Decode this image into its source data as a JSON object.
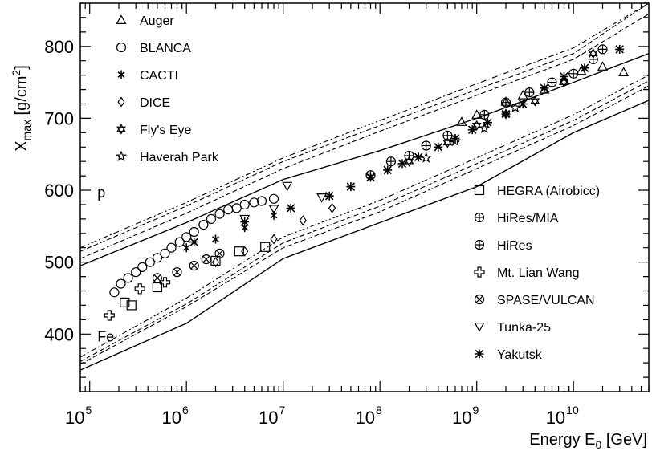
{
  "chart_data": {
    "type": "scatter",
    "title": "",
    "xlabel": "Energy E",
    "xlabel_sub": "0",
    "xlabel_unit": " [GeV]",
    "ylabel": "X",
    "ylabel_sub": "max",
    "ylabel_unit_pre": " [g/cm",
    "ylabel_unit_sup": "2",
    "ylabel_unit_post": "]",
    "x_scale": "log",
    "xlim": [
      80000,
      60000000000
    ],
    "ylim": [
      320,
      860
    ],
    "x_ticks": [
      {
        "base": "10",
        "exp": "5",
        "value": 100000
      },
      {
        "base": "10",
        "exp": "6",
        "value": 1000000
      },
      {
        "base": "10",
        "exp": "7",
        "value": 10000000
      },
      {
        "base": "10",
        "exp": "8",
        "value": 100000000
      },
      {
        "base": "10",
        "exp": "9",
        "value": 1000000000
      },
      {
        "base": "10",
        "exp": "10",
        "value": 10000000000
      }
    ],
    "y_ticks": [
      "400",
      "500",
      "600",
      "700",
      "800"
    ],
    "band_labels": [
      {
        "text": "p",
        "x": 120000,
        "y": 590
      },
      {
        "text": "Fe",
        "x": 120000,
        "y": 390
      }
    ],
    "legend_left": [
      {
        "name": "Auger",
        "marker": "triangle"
      },
      {
        "name": "BLANCA",
        "marker": "circle"
      },
      {
        "name": "CACTI",
        "marker": "asterisk-small"
      },
      {
        "name": "DICE",
        "marker": "diamond"
      },
      {
        "name": "Fly's Eye",
        "marker": "star-of-david"
      },
      {
        "name": "Haverah Park",
        "marker": "star"
      }
    ],
    "legend_right": [
      {
        "name": "HEGRA (Airobicc)",
        "marker": "square"
      },
      {
        "name": "HiRes/MIA",
        "marker": "circle-plus"
      },
      {
        "name": "HiRes",
        "marker": "circle-plus"
      },
      {
        "name": "Mt. Lian Wang",
        "marker": "cross"
      },
      {
        "name": "SPASE/VULCAN",
        "marker": "circle-x"
      },
      {
        "name": "Tunka-25",
        "marker": "down-triangle"
      },
      {
        "name": "Yakutsk",
        "marker": "asterisk"
      }
    ],
    "model_curves": [
      {
        "name": "p-solid",
        "style": "solid",
        "x": [
          80000,
          1000000,
          10000000,
          100000000,
          1000000000,
          10000000000,
          60000000000
        ],
        "y": [
          495,
          555,
          615,
          655,
          700,
          750,
          790
        ]
      },
      {
        "name": "p-dashed-1",
        "style": "dashed",
        "x": [
          80000,
          1000000,
          10000000,
          100000000,
          1000000000,
          10000000000,
          60000000000
        ],
        "y": [
          515,
          578,
          640,
          690,
          740,
          790,
          860
        ]
      },
      {
        "name": "p-dashed-2",
        "style": "dashed",
        "x": [
          80000,
          1000000,
          10000000,
          100000000,
          1000000000,
          10000000000,
          60000000000
        ],
        "y": [
          505,
          568,
          630,
          682,
          732,
          782,
          845
        ]
      },
      {
        "name": "p-dashdot",
        "style": "dashdot",
        "x": [
          80000,
          1000000,
          10000000,
          100000000,
          1000000000,
          10000000000,
          60000000000
        ],
        "y": [
          520,
          583,
          645,
          697,
          748,
          798,
          860
        ]
      },
      {
        "name": "fe-solid",
        "style": "solid",
        "x": [
          80000,
          1000000,
          10000000,
          100000000,
          1000000000,
          10000000000,
          60000000000
        ],
        "y": [
          350,
          415,
          505,
          555,
          605,
          680,
          725
        ]
      },
      {
        "name": "fe-dashed-1",
        "style": "dashed",
        "x": [
          80000,
          1000000,
          10000000,
          100000000,
          1000000000,
          10000000000,
          60000000000
        ],
        "y": [
          358,
          438,
          520,
          570,
          630,
          690,
          745
        ]
      },
      {
        "name": "fe-dashed-2",
        "style": "dashed",
        "x": [
          80000,
          1000000,
          10000000,
          100000000,
          1000000000,
          10000000000,
          60000000000
        ],
        "y": [
          362,
          442,
          527,
          578,
          637,
          697,
          752
        ]
      },
      {
        "name": "fe-dashdot",
        "style": "dashdot",
        "x": [
          80000,
          1000000,
          10000000,
          100000000,
          1000000000,
          10000000000,
          60000000000
        ],
        "y": [
          368,
          450,
          535,
          586,
          645,
          705,
          760
        ]
      }
    ],
    "series": [
      {
        "name": "Auger",
        "marker": "triangle",
        "points": [
          [
            700000000,
            695
          ],
          [
            1000000000,
            705
          ],
          [
            2000000000,
            723
          ],
          [
            3000000000,
            732
          ],
          [
            5000000000,
            740
          ],
          [
            8000000000,
            752
          ],
          [
            12000000000,
            766
          ],
          [
            20000000000,
            772
          ],
          [
            33000000000,
            764
          ]
        ]
      },
      {
        "name": "BLANCA",
        "marker": "circle",
        "points": [
          [
            180000,
            458
          ],
          [
            210000,
            470
          ],
          [
            250000,
            478
          ],
          [
            300000,
            486
          ],
          [
            350000,
            493
          ],
          [
            420000,
            500
          ],
          [
            500000,
            506
          ],
          [
            600000,
            512
          ],
          [
            700000,
            520
          ],
          [
            850000,
            528
          ],
          [
            1000000,
            535
          ],
          [
            1200000,
            542
          ],
          [
            1500000,
            552
          ],
          [
            1800000,
            560
          ],
          [
            2200000,
            567
          ],
          [
            2700000,
            573
          ],
          [
            3300000,
            575
          ],
          [
            4000000,
            580
          ],
          [
            5000000,
            583
          ],
          [
            6000000,
            585
          ],
          [
            8000000,
            588
          ]
        ]
      },
      {
        "name": "CACTI",
        "marker": "asterisk-small",
        "points": [
          [
            1000000,
            520
          ],
          [
            2000000,
            532
          ],
          [
            4000000,
            548
          ],
          [
            8000000,
            565
          ]
        ]
      },
      {
        "name": "DICE",
        "marker": "diamond",
        "points": [
          [
            2000000,
            500
          ],
          [
            4000000,
            515
          ],
          [
            8000000,
            532
          ],
          [
            16000000,
            558
          ],
          [
            32000000,
            575
          ]
        ]
      },
      {
        "name": "Fly's Eye",
        "marker": "star-of-david",
        "points": [
          [
            200000000,
            640
          ],
          [
            500000000,
            666
          ],
          [
            1000000000,
            690
          ],
          [
            2000000000,
            706
          ],
          [
            4000000000,
            724
          ],
          [
            8000000000,
            750
          ],
          [
            16000000000,
            790
          ]
        ]
      },
      {
        "name": "Haverah Park",
        "marker": "star",
        "points": [
          [
            300000000,
            645
          ],
          [
            600000000,
            668
          ],
          [
            1200000000,
            686
          ],
          [
            2500000000,
            715
          ]
        ]
      },
      {
        "name": "HEGRA (Airobicc)",
        "marker": "square",
        "points": [
          [
            230000,
            444
          ],
          [
            270000,
            440
          ],
          [
            500000,
            465
          ],
          [
            2000000,
            502
          ],
          [
            3500000,
            515
          ],
          [
            6500000,
            521
          ]
        ]
      },
      {
        "name": "HiRes/MIA",
        "marker": "circle-plus",
        "points": [
          [
            80000000,
            621
          ],
          [
            130000000,
            640
          ],
          [
            200000000,
            648
          ],
          [
            300000000,
            662
          ],
          [
            500000000,
            676
          ]
        ]
      },
      {
        "name": "HiRes",
        "marker": "circle-plus",
        "points": [
          [
            1200000000,
            705
          ],
          [
            2000000000,
            722
          ],
          [
            3500000000,
            736
          ],
          [
            6000000000,
            750
          ],
          [
            10000000000,
            762
          ],
          [
            16000000000,
            782
          ],
          [
            20000000000,
            796
          ]
        ]
      },
      {
        "name": "Mt. Lian Wang",
        "marker": "cross",
        "points": [
          [
            160000,
            426
          ],
          [
            330000,
            463
          ],
          [
            600000,
            472
          ]
        ]
      },
      {
        "name": "SPASE/VULCAN",
        "marker": "circle-x",
        "points": [
          [
            500000,
            478
          ],
          [
            800000,
            486
          ],
          [
            1200000,
            495
          ],
          [
            1600000,
            504
          ],
          [
            2200000,
            512
          ]
        ]
      },
      {
        "name": "Tunka-25",
        "marker": "down-triangle",
        "points": [
          [
            4000000,
            560
          ],
          [
            8000000,
            574
          ],
          [
            11000000,
            606
          ],
          [
            25000000,
            590
          ]
        ]
      },
      {
        "name": "Yakutsk",
        "marker": "asterisk",
        "points": [
          [
            1200000,
            528
          ],
          [
            4000000,
            556
          ],
          [
            12000000,
            575
          ],
          [
            30000000,
            592
          ],
          [
            50000000,
            605
          ],
          [
            80000000,
            618
          ],
          [
            120000000,
            628
          ],
          [
            170000000,
            637
          ],
          [
            250000000,
            646
          ],
          [
            400000000,
            660
          ],
          [
            600000000,
            672
          ],
          [
            900000000,
            684
          ],
          [
            1300000000,
            694
          ],
          [
            2000000000,
            706
          ],
          [
            3000000000,
            720
          ],
          [
            5000000000,
            742
          ],
          [
            8000000000,
            758
          ],
          [
            13000000000,
            770
          ],
          [
            30000000000,
            796
          ]
        ]
      }
    ]
  }
}
